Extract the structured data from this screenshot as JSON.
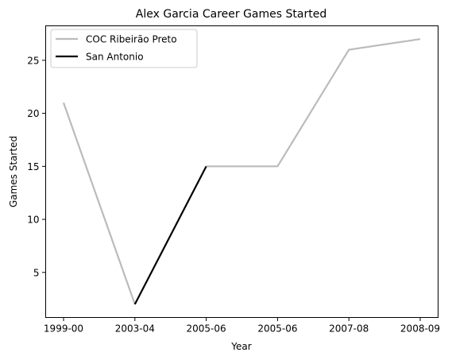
{
  "chart_data": {
    "type": "line",
    "title": "Alex Garcia  Career Games Started",
    "xlabel": "Year",
    "ylabel": "Games Started",
    "categories": [
      "1999-00",
      "2003-04",
      "2005-06",
      "2005-06",
      "2007-08",
      "2008-09"
    ],
    "ylim": [
      0.75,
      28.25
    ],
    "yticks": [
      5,
      10,
      15,
      20,
      25
    ],
    "grid": false,
    "legend_position": "upper-left",
    "series": [
      {
        "name": "COC Ribeirão Preto",
        "color": "#bbbbbb",
        "segments": [
          [
            {
              "x": 0,
              "y": 21
            },
            {
              "x": 1,
              "y": 2
            }
          ],
          [
            {
              "x": 2,
              "y": 15
            },
            {
              "x": 3,
              "y": 15
            },
            {
              "x": 4,
              "y": 26
            },
            {
              "x": 5,
              "y": 27
            }
          ]
        ]
      },
      {
        "name": "San Antonio",
        "color": "#000000",
        "segments": [
          [
            {
              "x": 1,
              "y": 2
            },
            {
              "x": 2,
              "y": 15
            }
          ]
        ]
      }
    ]
  }
}
